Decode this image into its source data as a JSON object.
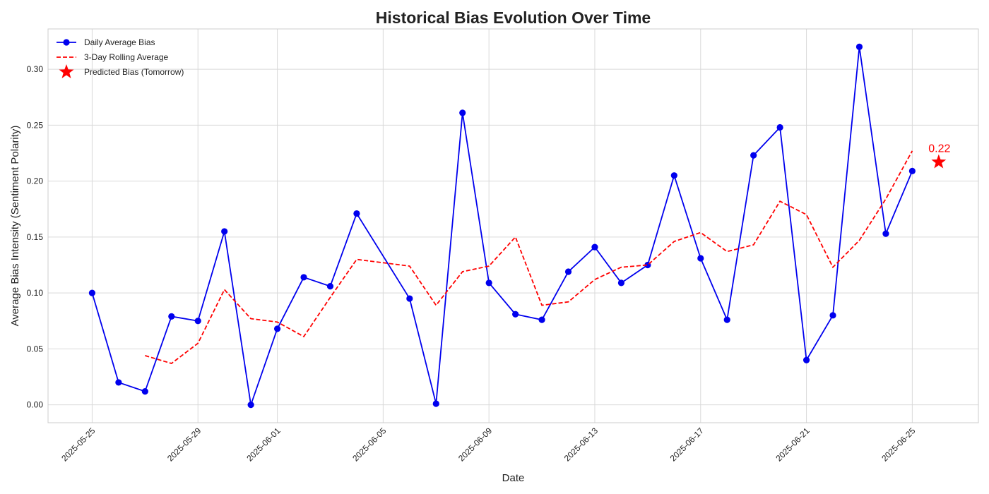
{
  "chart_data": {
    "type": "line",
    "title": "Historical Bias Evolution Over Time",
    "xlabel": "Date",
    "ylabel": "Average Bias Intensity (Sentiment Polarity)",
    "ylim": [
      -0.016,
      0.336
    ],
    "xlim": [
      "2025-05-23T08:00",
      "2025-06-27T12:00"
    ],
    "y_ticks": [
      0.0,
      0.05,
      0.1,
      0.15,
      0.2,
      0.25,
      0.3
    ],
    "y_tick_labels": [
      "0.00",
      "0.05",
      "0.10",
      "0.15",
      "0.20",
      "0.25",
      "0.30"
    ],
    "x_ticks": [
      "2025-05-25",
      "2025-05-29",
      "2025-06-01",
      "2025-06-05",
      "2025-06-09",
      "2025-06-13",
      "2025-06-17",
      "2025-06-21",
      "2025-06-25"
    ],
    "grid": true,
    "legend_position": "upper-left",
    "series": [
      {
        "name": "Daily Average Bias",
        "style": "line-markers",
        "color": "#0000ee",
        "x": [
          "2025-05-25",
          "2025-05-26",
          "2025-05-27",
          "2025-05-28",
          "2025-05-29",
          "2025-05-30",
          "2025-05-31",
          "2025-06-01",
          "2025-06-02",
          "2025-06-03",
          "2025-06-04",
          "2025-06-06",
          "2025-06-07",
          "2025-06-08",
          "2025-06-09",
          "2025-06-10",
          "2025-06-11",
          "2025-06-12",
          "2025-06-13",
          "2025-06-14",
          "2025-06-15",
          "2025-06-16",
          "2025-06-17",
          "2025-06-18",
          "2025-06-19",
          "2025-06-20",
          "2025-06-21",
          "2025-06-22",
          "2025-06-23",
          "2025-06-24",
          "2025-06-25"
        ],
        "values": [
          0.1,
          0.02,
          0.012,
          0.079,
          0.075,
          0.155,
          0.0,
          0.068,
          0.114,
          0.106,
          0.171,
          0.095,
          0.001,
          0.261,
          0.109,
          0.081,
          0.076,
          0.119,
          0.141,
          0.109,
          0.125,
          0.205,
          0.131,
          0.076,
          0.223,
          0.248,
          0.04,
          0.08,
          0.32,
          0.153,
          0.209
        ]
      },
      {
        "name": "3-Day Rolling Average",
        "style": "dashed",
        "color": "#ff0000",
        "x": [
          "2025-05-27",
          "2025-05-28",
          "2025-05-29",
          "2025-05-30",
          "2025-05-31",
          "2025-06-01",
          "2025-06-02",
          "2025-06-03",
          "2025-06-04",
          "2025-06-06",
          "2025-06-07",
          "2025-06-08",
          "2025-06-09",
          "2025-06-10",
          "2025-06-11",
          "2025-06-12",
          "2025-06-13",
          "2025-06-14",
          "2025-06-15",
          "2025-06-16",
          "2025-06-17",
          "2025-06-18",
          "2025-06-19",
          "2025-06-20",
          "2025-06-21",
          "2025-06-22",
          "2025-06-23",
          "2025-06-24",
          "2025-06-25"
        ],
        "values": [
          0.044,
          0.037,
          0.055,
          0.103,
          0.077,
          0.074,
          0.061,
          0.096,
          0.13,
          0.124,
          0.089,
          0.119,
          0.124,
          0.15,
          0.089,
          0.092,
          0.112,
          0.123,
          0.125,
          0.146,
          0.154,
          0.137,
          0.143,
          0.182,
          0.17,
          0.123,
          0.147,
          0.184,
          0.227
        ]
      },
      {
        "name": "Predicted Bias (Tomorrow)",
        "style": "star",
        "color": "#ff0000",
        "x": [
          "2025-06-26"
        ],
        "values": [
          0.217
        ]
      }
    ],
    "annotations": [
      {
        "text": "0.22",
        "x": "2025-06-26",
        "y": 0.217,
        "color": "#ff0000"
      }
    ]
  }
}
